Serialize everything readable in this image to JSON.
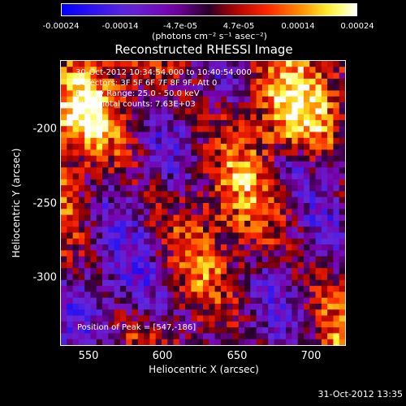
{
  "chart_data": {
    "type": "heatmap",
    "title": "Reconstructed RHESSI Image",
    "xlabel": "Heliocentric X (arcsec)",
    "ylabel": "Heliocentric Y (arcsec)",
    "xlim": [
      532,
      725
    ],
    "ylim": [
      -348,
      -156
    ],
    "x_ticks": [
      "550",
      "600",
      "650",
      "700"
    ],
    "x_tick_values": [
      550,
      600,
      650,
      700
    ],
    "y_ticks": [
      "-200",
      "-250",
      "-300"
    ],
    "y_tick_values": [
      -200,
      -250,
      -300
    ],
    "colorbar": {
      "ticks": [
        "-0.00024",
        "-0.00014",
        "-4.7e-05",
        "4.7e-05",
        "0.00014",
        "0.00024"
      ],
      "tick_values": [
        -0.00024,
        -0.00014,
        -4.7e-05,
        4.7e-05,
        0.00014,
        0.00024
      ],
      "range": [
        -0.00024,
        0.00024
      ],
      "units": "(photons cm⁻² s⁻¹ asec⁻²)"
    },
    "annotations": [
      "30-Oct-2012 10:34:54.000 to 10:40:54.000",
      "Detectors: 3F 5F 6F 7F 8F 9F, Att 0",
      "Energy Range: 25.0 - 50.0 keV",
      "Clean    Total counts: 7.63E+03"
    ],
    "peak_label": "Position of Peak = [547,-186]",
    "peak_position": [
      547,
      -186
    ],
    "image_grid": {
      "cols": 48,
      "rows": 48
    }
  },
  "footer": {
    "timestamp": "31-Oct-2012 13:35"
  },
  "colors": {
    "background": "#000000",
    "frame": "#ffffff"
  }
}
